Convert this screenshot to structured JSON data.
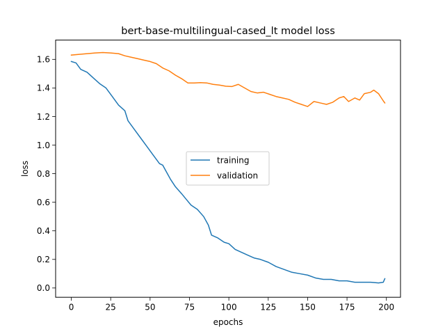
{
  "chart_data": {
    "type": "line",
    "title": "bert-base-multilingual-cased_lt model loss",
    "xlabel": "epochs",
    "ylabel": "loss",
    "xlim": [
      -9.95,
      208.95
    ],
    "ylim": [
      -0.065,
      1.735
    ],
    "xticks": [
      0,
      25,
      50,
      75,
      100,
      125,
      150,
      175,
      200
    ],
    "yticks": [
      0.0,
      0.2,
      0.4,
      0.6,
      0.8,
      1.0,
      1.2,
      1.4,
      1.6
    ],
    "ytick_labels": [
      "0.0",
      "0.2",
      "0.4",
      "0.6",
      "0.8",
      "1.0",
      "1.2",
      "1.4",
      "1.6"
    ],
    "grid": false,
    "legend_position": "center",
    "series": [
      {
        "name": "training",
        "color": "#1f77b4",
        "points": [
          [
            0,
            1.585
          ],
          [
            3,
            1.575
          ],
          [
            6,
            1.53
          ],
          [
            10,
            1.51
          ],
          [
            14,
            1.47
          ],
          [
            18,
            1.43
          ],
          [
            22,
            1.4
          ],
          [
            26,
            1.34
          ],
          [
            30,
            1.28
          ],
          [
            34,
            1.24
          ],
          [
            36,
            1.17
          ],
          [
            40,
            1.11
          ],
          [
            44,
            1.05
          ],
          [
            48,
            0.99
          ],
          [
            52,
            0.93
          ],
          [
            56,
            0.87
          ],
          [
            58,
            0.86
          ],
          [
            60,
            0.82
          ],
          [
            63,
            0.76
          ],
          [
            66,
            0.71
          ],
          [
            70,
            0.66
          ],
          [
            73,
            0.62
          ],
          [
            76,
            0.58
          ],
          [
            80,
            0.55
          ],
          [
            84,
            0.5
          ],
          [
            87,
            0.44
          ],
          [
            89,
            0.37
          ],
          [
            93,
            0.35
          ],
          [
            97,
            0.32
          ],
          [
            100,
            0.31
          ],
          [
            104,
            0.27
          ],
          [
            108,
            0.25
          ],
          [
            112,
            0.23
          ],
          [
            116,
            0.21
          ],
          [
            120,
            0.2
          ],
          [
            125,
            0.18
          ],
          [
            130,
            0.15
          ],
          [
            135,
            0.13
          ],
          [
            140,
            0.11
          ],
          [
            145,
            0.1
          ],
          [
            150,
            0.09
          ],
          [
            155,
            0.07
          ],
          [
            160,
            0.06
          ],
          [
            165,
            0.06
          ],
          [
            170,
            0.05
          ],
          [
            175,
            0.05
          ],
          [
            180,
            0.04
          ],
          [
            185,
            0.04
          ],
          [
            190,
            0.04
          ],
          [
            195,
            0.035
          ],
          [
            198,
            0.04
          ],
          [
            199,
            0.065
          ]
        ]
      },
      {
        "name": "validation",
        "color": "#ff7f0e",
        "points": [
          [
            0,
            1.63
          ],
          [
            5,
            1.635
          ],
          [
            10,
            1.64
          ],
          [
            15,
            1.645
          ],
          [
            20,
            1.648
          ],
          [
            25,
            1.645
          ],
          [
            30,
            1.64
          ],
          [
            34,
            1.625
          ],
          [
            38,
            1.615
          ],
          [
            42,
            1.605
          ],
          [
            46,
            1.595
          ],
          [
            50,
            1.585
          ],
          [
            54,
            1.57
          ],
          [
            58,
            1.54
          ],
          [
            62,
            1.52
          ],
          [
            66,
            1.49
          ],
          [
            70,
            1.465
          ],
          [
            74,
            1.435
          ],
          [
            78,
            1.435
          ],
          [
            82,
            1.437
          ],
          [
            86,
            1.435
          ],
          [
            90,
            1.425
          ],
          [
            94,
            1.42
          ],
          [
            98,
            1.412
          ],
          [
            102,
            1.41
          ],
          [
            106,
            1.425
          ],
          [
            110,
            1.4
          ],
          [
            114,
            1.375
          ],
          [
            118,
            1.365
          ],
          [
            122,
            1.37
          ],
          [
            126,
            1.355
          ],
          [
            130,
            1.34
          ],
          [
            134,
            1.33
          ],
          [
            138,
            1.32
          ],
          [
            142,
            1.3
          ],
          [
            146,
            1.285
          ],
          [
            150,
            1.27
          ],
          [
            154,
            1.305
          ],
          [
            158,
            1.295
          ],
          [
            162,
            1.285
          ],
          [
            166,
            1.3
          ],
          [
            170,
            1.33
          ],
          [
            173,
            1.34
          ],
          [
            176,
            1.305
          ],
          [
            180,
            1.33
          ],
          [
            183,
            1.315
          ],
          [
            186,
            1.36
          ],
          [
            190,
            1.37
          ],
          [
            192,
            1.385
          ],
          [
            195,
            1.36
          ],
          [
            198,
            1.31
          ],
          [
            199,
            1.295
          ]
        ]
      }
    ]
  }
}
